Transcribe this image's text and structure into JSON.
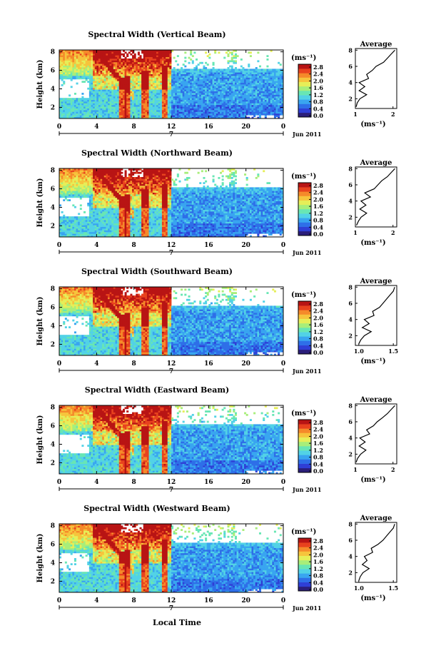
{
  "figure": {
    "x_axis_label": "Local Time"
  },
  "colorbar": {
    "unit_label": "(ms⁻¹)",
    "tick_labels": [
      "2.8",
      "2.4",
      "2.0",
      "1.6",
      "1.2",
      "0.8",
      "0.4",
      "0.0"
    ],
    "colors": [
      "#2b1e7a",
      "#2f3fd6",
      "#2e6fe8",
      "#39a5f0",
      "#52d2e6",
      "#68e6b4",
      "#a8ee7a",
      "#e6ee58",
      "#f6c43c",
      "#f58a2a",
      "#e8421e",
      "#b81414"
    ]
  },
  "chart_data": [
    {
      "type": "heatmap",
      "title": "Spectral Width (Vertical Beam)",
      "ylabel": "Height (km)",
      "x_ticks": [
        "0",
        "4",
        "8",
        "12",
        "16",
        "20",
        "0"
      ],
      "y_ticks": [
        "2",
        "4",
        "6",
        "8"
      ],
      "xlim": [
        0,
        24
      ],
      "ylim": [
        0.8,
        8.2
      ],
      "date_marker": "7",
      "date_label": "Jun 2011",
      "colorbar_ticks": [
        "2.8",
        "2.4",
        "2.0",
        "1.6",
        "1.2",
        "0.8",
        "0.4",
        "0.0"
      ],
      "average_profile": {
        "title": "Average",
        "xlabel": "(ms⁻¹)",
        "x_ticks": [
          "1",
          "2"
        ],
        "xlim": [
          1.0,
          2.1
        ],
        "y_ticks": [
          "2",
          "4",
          "6",
          "8"
        ],
        "heights": [
          1.0,
          1.5,
          2.0,
          2.5,
          3.0,
          3.5,
          4.0,
          4.5,
          5.0,
          5.5,
          6.0,
          6.5,
          7.0,
          7.5,
          8.0
        ],
        "values": [
          1.02,
          1.05,
          1.12,
          1.3,
          1.1,
          1.25,
          1.1,
          1.35,
          1.3,
          1.45,
          1.55,
          1.75,
          1.85,
          1.95,
          2.05
        ]
      }
    },
    {
      "type": "heatmap",
      "title": "Spectral Width (Northward Beam)",
      "ylabel": "Height (km)",
      "x_ticks": [
        "0",
        "4",
        "8",
        "12",
        "16",
        "20",
        "0"
      ],
      "y_ticks": [
        "2",
        "4",
        "6",
        "8"
      ],
      "xlim": [
        0,
        24
      ],
      "ylim": [
        0.8,
        8.2
      ],
      "date_marker": "7",
      "date_label": "Jun 2011",
      "colorbar_ticks": [
        "2.8",
        "2.4",
        "2.0",
        "1.6",
        "1.2",
        "0.8",
        "0.4",
        "0.0"
      ],
      "average_profile": {
        "title": "Average",
        "xlabel": "(ms⁻¹)",
        "x_ticks": [
          "1",
          "2"
        ],
        "xlim": [
          1.0,
          2.1
        ],
        "y_ticks": [
          "2",
          "4",
          "6",
          "8"
        ],
        "heights": [
          1.0,
          1.5,
          2.0,
          2.5,
          3.0,
          3.5,
          4.0,
          4.5,
          5.0,
          5.5,
          6.0,
          6.5,
          7.0,
          7.5,
          8.0
        ],
        "values": [
          1.03,
          1.08,
          1.15,
          1.3,
          1.12,
          1.28,
          1.15,
          1.4,
          1.25,
          1.5,
          1.6,
          1.7,
          1.85,
          1.95,
          2.05
        ]
      }
    },
    {
      "type": "heatmap",
      "title": "Spectral Width (Southward Beam)",
      "ylabel": "Height (km)",
      "x_ticks": [
        "0",
        "4",
        "8",
        "12",
        "16",
        "20",
        "0"
      ],
      "y_ticks": [
        "2",
        "4",
        "6",
        "8"
      ],
      "xlim": [
        0,
        24
      ],
      "ylim": [
        0.8,
        8.2
      ],
      "date_marker": "7",
      "date_label": "Jun 2011",
      "colorbar_ticks": [
        "2.8",
        "2.4",
        "2.0",
        "1.6",
        "1.2",
        "0.8",
        "0.4",
        "0.0"
      ],
      "average_profile": {
        "title": "Average",
        "xlabel": "(ms⁻¹)",
        "x_ticks": [
          "1.0",
          "1.5"
        ],
        "xlim": [
          0.95,
          1.55
        ],
        "y_ticks": [
          "2",
          "4",
          "6",
          "8"
        ],
        "heights": [
          1.0,
          1.5,
          2.0,
          2.5,
          3.0,
          3.5,
          4.0,
          4.5,
          5.0,
          5.5,
          6.0,
          6.5,
          7.0,
          7.5,
          8.0
        ],
        "values": [
          1.0,
          1.03,
          1.08,
          1.18,
          1.05,
          1.15,
          1.08,
          1.22,
          1.2,
          1.3,
          1.35,
          1.4,
          1.45,
          1.5,
          1.52
        ]
      }
    },
    {
      "type": "heatmap",
      "title": "Spectral Width (Eastward Beam)",
      "ylabel": "Height (km)",
      "x_ticks": [
        "0",
        "4",
        "8",
        "12",
        "16",
        "20",
        "0"
      ],
      "y_ticks": [
        "2",
        "4",
        "6",
        "8"
      ],
      "xlim": [
        0,
        24
      ],
      "ylim": [
        0.8,
        8.2
      ],
      "date_marker": "7",
      "date_label": "Jun 2011",
      "colorbar_ticks": [
        "2.8",
        "2.4",
        "2.0",
        "1.6",
        "1.2",
        "0.8",
        "0.4",
        "0.0"
      ],
      "average_profile": {
        "title": "Average",
        "xlabel": "(ms⁻¹)",
        "x_ticks": [
          "1",
          "2"
        ],
        "xlim": [
          1.0,
          2.1
        ],
        "y_ticks": [
          "2",
          "4",
          "6",
          "8"
        ],
        "heights": [
          1.0,
          1.5,
          2.0,
          2.5,
          3.0,
          3.5,
          4.0,
          4.5,
          5.0,
          5.5,
          6.0,
          6.5,
          7.0,
          7.5,
          8.0
        ],
        "values": [
          1.02,
          1.06,
          1.14,
          1.28,
          1.1,
          1.26,
          1.12,
          1.38,
          1.3,
          1.48,
          1.58,
          1.72,
          1.85,
          1.95,
          2.05
        ]
      }
    },
    {
      "type": "heatmap",
      "title": "Spectral Width (Westward Beam)",
      "ylabel": "Height (km)",
      "x_ticks": [
        "0",
        "4",
        "8",
        "12",
        "16",
        "20",
        "0"
      ],
      "y_ticks": [
        "2",
        "4",
        "6",
        "8"
      ],
      "xlim": [
        0,
        24
      ],
      "ylim": [
        0.8,
        8.2
      ],
      "date_marker": "7",
      "date_label": "Jun 2011",
      "colorbar_ticks": [
        "2.8",
        "2.4",
        "2.0",
        "1.6",
        "1.2",
        "0.8",
        "0.4",
        "0.0"
      ],
      "average_profile": {
        "title": "Average",
        "xlabel": "(ms⁻¹)",
        "x_ticks": [
          "1.0",
          "1.5"
        ],
        "xlim": [
          0.95,
          1.55
        ],
        "y_ticks": [
          "2",
          "4",
          "6",
          "8"
        ],
        "heights": [
          1.0,
          1.5,
          2.0,
          2.5,
          3.0,
          3.5,
          4.0,
          4.5,
          5.0,
          5.5,
          6.0,
          6.5,
          7.0,
          7.5,
          8.0
        ],
        "values": [
          1.0,
          1.02,
          1.06,
          1.15,
          1.05,
          1.12,
          1.08,
          1.2,
          1.18,
          1.28,
          1.35,
          1.4,
          1.45,
          1.5,
          1.52
        ]
      }
    }
  ]
}
